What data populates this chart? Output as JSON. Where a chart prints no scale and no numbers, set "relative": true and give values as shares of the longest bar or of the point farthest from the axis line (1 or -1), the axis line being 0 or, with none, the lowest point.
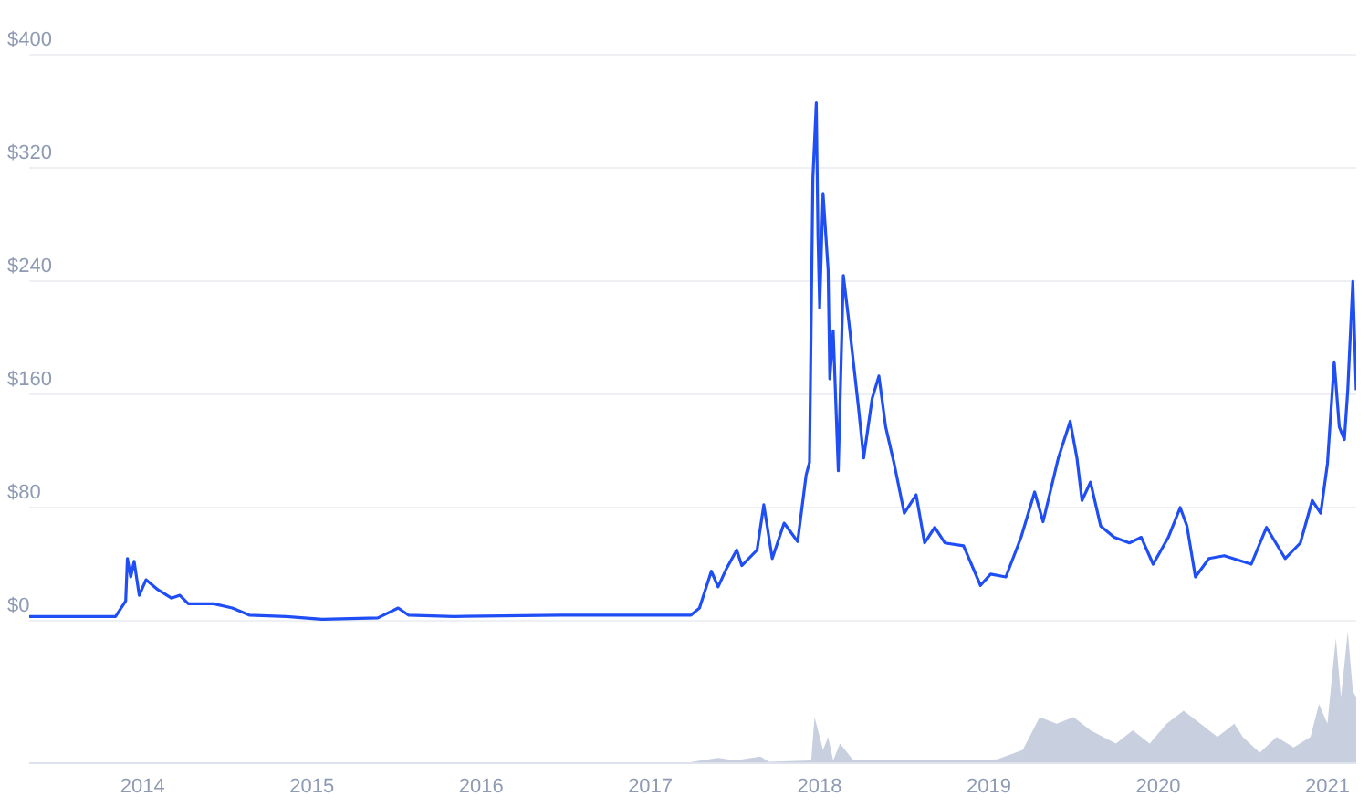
{
  "chart_data": [
    {
      "type": "line",
      "color": "#1f4ef5",
      "grid": "y",
      "tick_labels": "y",
      "xlim": [
        2013.33,
        2021.17
      ],
      "ylim": [
        0,
        400
      ],
      "yticks": [
        {
          "value": 0,
          "label": "$0"
        },
        {
          "value": 80,
          "label": "$80"
        },
        {
          "value": 160,
          "label": "$160"
        },
        {
          "value": 240,
          "label": "$240"
        },
        {
          "value": 320,
          "label": "$320"
        },
        {
          "value": 400,
          "label": "$400"
        }
      ],
      "x": [
        2013.33,
        2013.84,
        2013.9,
        2013.91,
        2013.93,
        2013.95,
        2013.98,
        2014.02,
        2014.09,
        2014.17,
        2014.22,
        2014.27,
        2014.42,
        2014.53,
        2014.63,
        2014.85,
        2015.06,
        2015.39,
        2015.51,
        2015.57,
        2015.84,
        2016.47,
        2017.24,
        2017.29,
        2017.36,
        2017.4,
        2017.45,
        2017.51,
        2017.54,
        2017.63,
        2017.67,
        2017.72,
        2017.79,
        2017.87,
        2017.92,
        2017.94,
        2017.96,
        2017.98,
        2017.99,
        2018.0,
        2018.02,
        2018.05,
        2018.06,
        2018.08,
        2018.11,
        2018.14,
        2018.17,
        2018.23,
        2018.26,
        2018.31,
        2018.35,
        2018.39,
        2018.44,
        2018.5,
        2018.57,
        2018.62,
        2018.68,
        2018.74,
        2018.85,
        2018.95,
        2019.01,
        2019.1,
        2019.19,
        2019.27,
        2019.32,
        2019.41,
        2019.48,
        2019.52,
        2019.55,
        2019.6,
        2019.66,
        2019.74,
        2019.83,
        2019.9,
        2019.97,
        2020.06,
        2020.13,
        2020.17,
        2020.22,
        2020.3,
        2020.39,
        2020.55,
        2020.64,
        2020.75,
        2020.84,
        2020.91,
        2020.96,
        2021.0,
        2021.04,
        2021.07,
        2021.1,
        2021.12,
        2021.15,
        2021.17
      ],
      "values": [
        3,
        3,
        14,
        44,
        31,
        42,
        18,
        29,
        22,
        16,
        18,
        12,
        12,
        9,
        4,
        3,
        1,
        2,
        9,
        4,
        3,
        4,
        4,
        9,
        35,
        24,
        37,
        50,
        39,
        50,
        82,
        44,
        69,
        56,
        103,
        112,
        313,
        366,
        272,
        221,
        302,
        248,
        171,
        205,
        106,
        244,
        214,
        150,
        115,
        157,
        173,
        137,
        111,
        76,
        89,
        55,
        66,
        55,
        53,
        25,
        33,
        31,
        59,
        91,
        70,
        115,
        141,
        115,
        85,
        98,
        67,
        59,
        55,
        59,
        40,
        59,
        80,
        67,
        31,
        44,
        46,
        40,
        66,
        44,
        55,
        85,
        76,
        111,
        183,
        137,
        128,
        163,
        240,
        163
      ]
    },
    {
      "type": "area",
      "color": "#c8cfdf",
      "relative": true,
      "tick_labels": "x",
      "xlim": [
        2013.33,
        2021.17
      ],
      "xticks": [
        2014,
        2015,
        2016,
        2017,
        2018,
        2019,
        2020,
        2021
      ],
      "x": [
        2013.33,
        2017.2,
        2017.4,
        2017.5,
        2017.65,
        2017.7,
        2017.95,
        2017.97,
        2018.02,
        2018.05,
        2018.08,
        2018.12,
        2018.2,
        2018.9,
        2019.05,
        2019.2,
        2019.3,
        2019.4,
        2019.5,
        2019.6,
        2019.75,
        2019.85,
        2019.95,
        2020.05,
        2020.15,
        2020.25,
        2020.35,
        2020.45,
        2020.5,
        2020.6,
        2020.7,
        2020.8,
        2020.9,
        2020.95,
        2021.0,
        2021.03,
        2021.05,
        2021.08,
        2021.12,
        2021.15,
        2021.17
      ],
      "values": [
        0,
        0,
        0.04,
        0.02,
        0.05,
        0.01,
        0.02,
        0.35,
        0.1,
        0.2,
        0.02,
        0.15,
        0.02,
        0.02,
        0.03,
        0.1,
        0.35,
        0.3,
        0.35,
        0.25,
        0.15,
        0.25,
        0.15,
        0.3,
        0.4,
        0.3,
        0.2,
        0.3,
        0.2,
        0.08,
        0.2,
        0.12,
        0.2,
        0.45,
        0.3,
        0.7,
        0.95,
        0.5,
        1,
        0.55,
        0.5
      ]
    }
  ]
}
